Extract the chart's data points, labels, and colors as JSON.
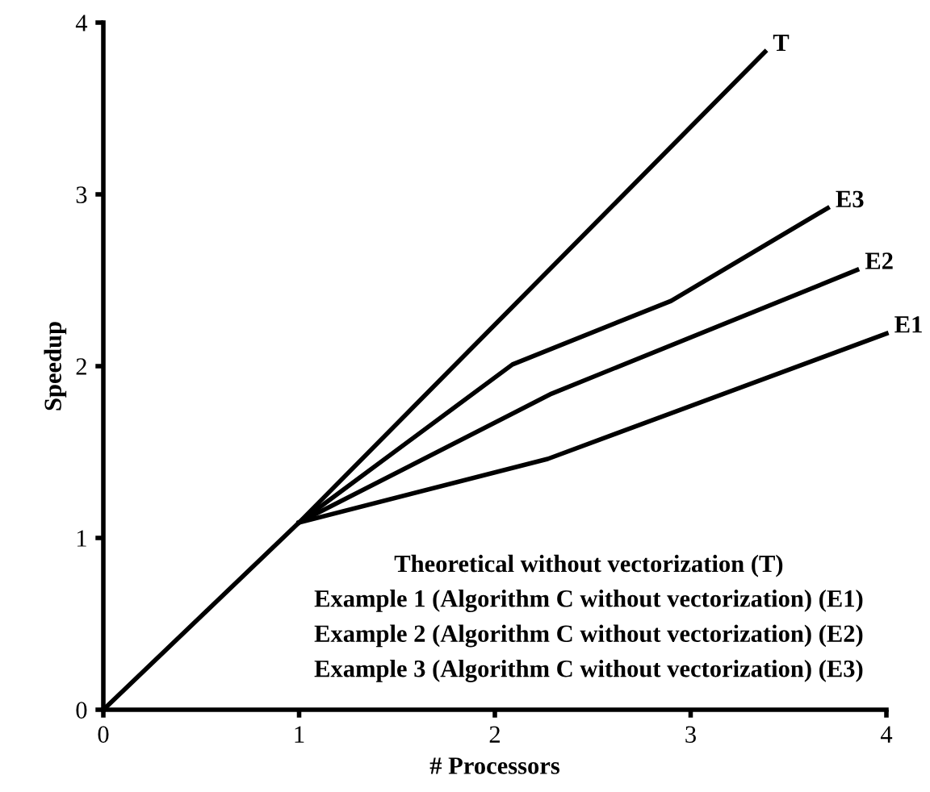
{
  "chart_data": {
    "type": "line",
    "xlabel": "# Processors",
    "ylabel": "Speedup",
    "xlim": [
      0,
      4
    ],
    "ylim": [
      0,
      4
    ],
    "xticks": [
      0,
      1,
      2,
      3,
      4
    ],
    "yticks": [
      0,
      1,
      2,
      3,
      4
    ],
    "grid": false,
    "legend": false,
    "marker": "none",
    "line_style": "solid",
    "series": [
      {
        "name": "T",
        "color": "#000000",
        "x": [
          0,
          1.0,
          3.38
        ],
        "values": [
          0,
          1.09,
          3.83
        ]
      },
      {
        "name": "E3",
        "color": "#000000",
        "x": [
          1.0,
          2.09,
          2.9,
          3.7
        ],
        "values": [
          1.09,
          2.01,
          2.38,
          2.92
        ]
      },
      {
        "name": "E2",
        "color": "#000000",
        "x": [
          1.0,
          2.29,
          3.85
        ],
        "values": [
          1.09,
          1.84,
          2.56
        ]
      },
      {
        "name": "E1",
        "color": "#000000",
        "x": [
          1.0,
          2.27,
          4.0
        ],
        "values": [
          1.09,
          1.46,
          2.19
        ]
      }
    ],
    "annotations": [
      "Theoretical without vectorization (T)",
      "Example 1 (Algorithm C without vectorization) (E1)",
      "Example 2 (Algorithm C without vectorization) (E2)",
      "Example 3 (Algorithm C without vectorization) (E3)"
    ]
  }
}
